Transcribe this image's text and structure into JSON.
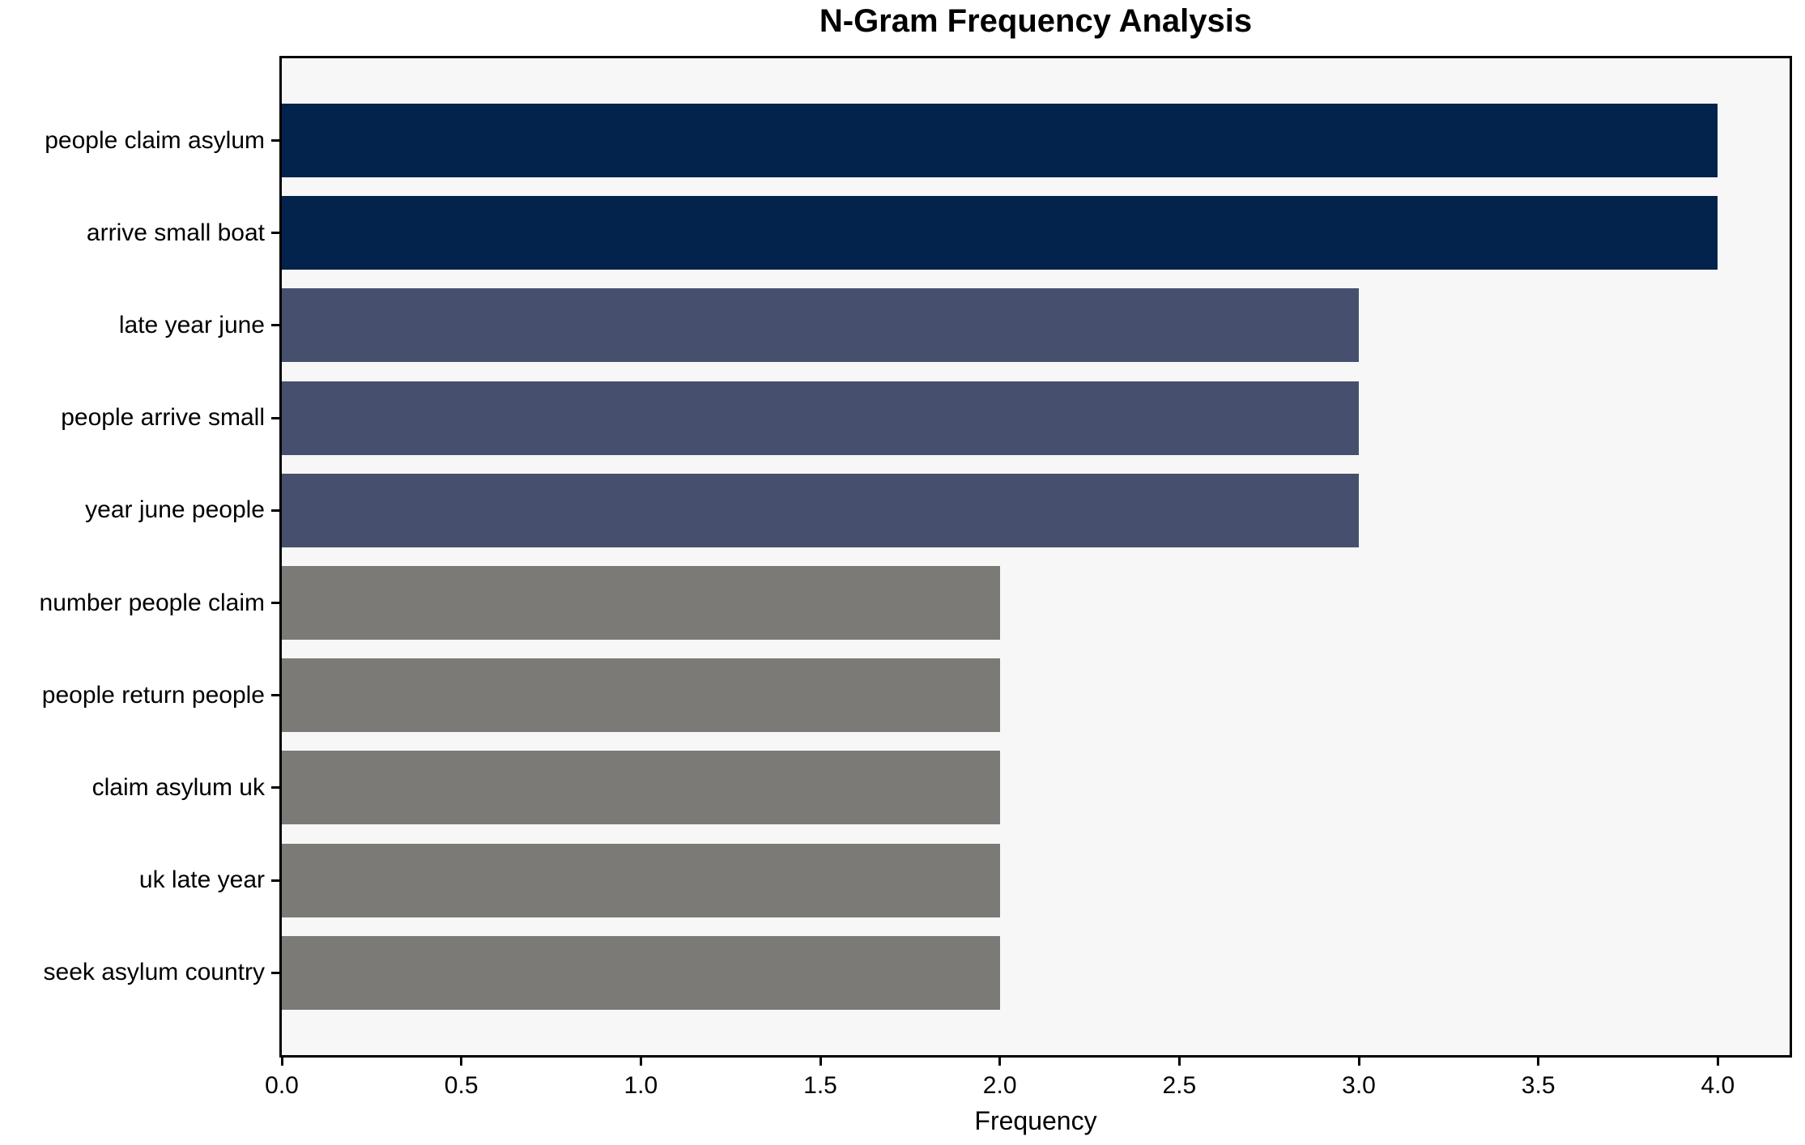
{
  "chart_data": {
    "type": "bar",
    "orientation": "horizontal",
    "title": "N-Gram Frequency Analysis",
    "xlabel": "Frequency",
    "ylabel": "",
    "categories": [
      "people claim asylum",
      "arrive small boat",
      "late year june",
      "people arrive small",
      "year june people",
      "number people claim",
      "people return people",
      "claim asylum uk",
      "uk late year",
      "seek asylum country"
    ],
    "values": [
      4,
      4,
      3,
      3,
      3,
      2,
      2,
      2,
      2,
      2
    ],
    "bar_colors": [
      "#03234d",
      "#03234d",
      "#46506e",
      "#46506e",
      "#46506e",
      "#7b7a77",
      "#7b7a77",
      "#7b7a77",
      "#7b7a77",
      "#7b7a77"
    ],
    "xlim": [
      0,
      4.2
    ],
    "xtick_values": [
      0,
      0.5,
      1,
      1.5,
      2,
      2.5,
      3,
      3.5,
      4
    ],
    "xtick_labels": [
      "0.0",
      "0.5",
      "1.0",
      "1.5",
      "2.0",
      "2.5",
      "3.0",
      "3.5",
      "4.0"
    ],
    "grid": false,
    "legend": null,
    "plot_background": "#f7f7f7",
    "figure_background": "#ffffff",
    "axis_color": "#000000"
  }
}
